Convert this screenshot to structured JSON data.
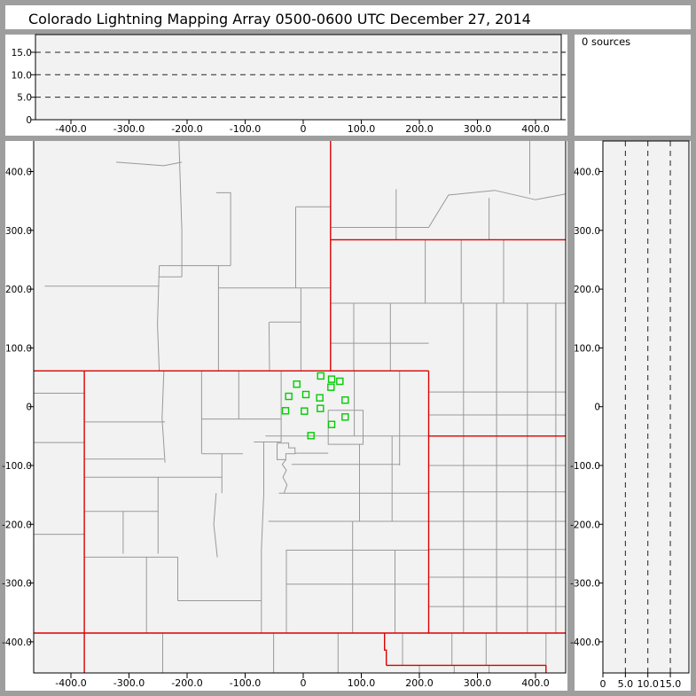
{
  "title": "Colorado Lightning Mapping Array   0500-0600 UTC  December 27, 2014",
  "sources_label": "0 sources",
  "colors": {
    "frame": "#9e9e9e",
    "panel_white": "#ffffff",
    "plot_bg": "#f2f2f2",
    "county_line": "#999999",
    "state_line": "#dd0000",
    "station": "#00cc00",
    "axis": "#000000",
    "dash": "#222222"
  },
  "axes": {
    "ew_km": {
      "values": [
        -400,
        -300,
        -200,
        -100,
        0,
        100,
        200,
        300,
        400
      ],
      "labels": [
        "-400.0",
        "-300.0",
        "-200.0",
        "-100.0",
        "0",
        "100.0",
        "200.0",
        "300.0",
        "400.0"
      ]
    },
    "ns_km": {
      "values": [
        400,
        300,
        200,
        100,
        0,
        -100,
        -200,
        -300,
        -400
      ],
      "labels": [
        "400.0",
        "300.0",
        "200.0",
        "100.0",
        "0",
        "-100.0",
        "-200.0",
        "-300.0",
        "-400.0"
      ]
    },
    "alt_km": {
      "values": [
        0,
        5,
        10,
        15
      ],
      "labels": [
        "0",
        "5.0",
        "10.0",
        "15.0"
      ]
    },
    "dashed_alt_levels": [
      5,
      10,
      15
    ]
  },
  "chart_data": {
    "type": "scatter",
    "title": "Colorado Lightning Mapping Array   0500-0600 UTC  December 27, 2014",
    "source_count_text": "0 sources",
    "xlabel_units_km_east": true,
    "x_range_km": [
      -464,
      452
    ],
    "y_range_km": [
      -453,
      452
    ],
    "alt_range_km": [
      0,
      19
    ],
    "lightning_sources": [],
    "stations_km": [
      [
        30.1,
        52.3
      ],
      [
        48.9,
        46.8
      ],
      [
        63.1,
        43.3
      ],
      [
        -11.1,
        38.3
      ],
      [
        47.8,
        33.2
      ],
      [
        4.6,
        20.7
      ],
      [
        -24.9,
        17.6
      ],
      [
        28.5,
        15.1
      ],
      [
        72.2,
        11.2
      ],
      [
        -30.5,
        -6.9
      ],
      [
        2.0,
        -7.5
      ],
      [
        29.5,
        -3.0
      ],
      [
        72.2,
        -17.5
      ],
      [
        48.9,
        -30.2
      ],
      [
        13.3,
        -49.2
      ]
    ]
  },
  "map": {
    "state_borders": [
      [
        [
          -464,
          61
        ],
        [
          216,
          61
        ]
      ],
      [
        [
          216,
          61
        ],
        [
          216,
          -385
        ]
      ],
      [
        [
          216,
          -50
        ],
        [
          452,
          -50
        ]
      ],
      [
        [
          47,
          452
        ],
        [
          47,
          61
        ]
      ],
      [
        [
          47,
          284
        ],
        [
          452,
          284
        ]
      ],
      [
        [
          -464,
          -385
        ],
        [
          452,
          -385
        ]
      ],
      [
        [
          -377,
          61
        ],
        [
          -377,
          -453
        ]
      ],
      [
        [
          140,
          -385
        ],
        [
          140,
          -414
        ],
        [
          143,
          -414
        ],
        [
          143,
          -440
        ]
      ],
      [
        [
          143,
          -440
        ],
        [
          418,
          -440
        ]
      ],
      [
        [
          418,
          -440
        ],
        [
          418,
          -453
        ]
      ]
    ],
    "county_lines": [
      [
        [
          -58,
          61
        ],
        [
          -59,
          144
        ]
      ],
      [
        [
          -58,
          144
        ],
        [
          -4,
          144
        ]
      ],
      [
        [
          -4,
          61
        ],
        [
          -4,
          202
        ]
      ],
      [
        [
          -146,
          61
        ],
        [
          -146,
          240
        ]
      ],
      [
        [
          -248,
          61
        ],
        [
          -251,
          140
        ],
        [
          -248,
          240
        ]
      ],
      [
        [
          -248,
          240
        ],
        [
          -125,
          240
        ]
      ],
      [
        [
          -146,
          202
        ],
        [
          47,
          202
        ]
      ],
      [
        [
          -445,
          205
        ],
        [
          -248,
          205
        ]
      ],
      [
        [
          -13,
          202
        ],
        [
          -13,
          340
        ]
      ],
      [
        [
          -13,
          340
        ],
        [
          47,
          340
        ]
      ],
      [
        [
          -125,
          240
        ],
        [
          -125,
          364
        ],
        [
          -150,
          364
        ]
      ],
      [
        [
          -248,
          221
        ],
        [
          -209,
          221
        ]
      ],
      [
        [
          -209,
          221
        ],
        [
          -209,
          300
        ],
        [
          -214,
          452
        ]
      ],
      [
        [
          -322,
          416
        ],
        [
          -240,
          410
        ],
        [
          -209,
          416
        ]
      ],
      [
        [
          -464,
          23
        ],
        [
          -377,
          23
        ]
      ],
      [
        [
          -464,
          -61
        ],
        [
          -377,
          -61
        ]
      ],
      [
        [
          -464,
          -217
        ],
        [
          -377,
          -217
        ]
      ],
      [
        [
          47,
          305
        ],
        [
          216,
          305
        ]
      ],
      [
        [
          160,
          284
        ],
        [
          160,
          370
        ]
      ],
      [
        [
          216,
          305
        ],
        [
          250,
          360
        ],
        [
          330,
          368
        ],
        [
          400,
          352
        ],
        [
          452,
          362
        ]
      ],
      [
        [
          320,
          284
        ],
        [
          320,
          355
        ]
      ],
      [
        [
          390,
          362
        ],
        [
          390,
          452
        ]
      ],
      [
        [
          47,
          176
        ],
        [
          452,
          176
        ]
      ],
      [
        [
          47,
          108
        ],
        [
          216,
          108
        ]
      ],
      [
        [
          87,
          61
        ],
        [
          87,
          176
        ]
      ],
      [
        [
          150,
          61
        ],
        [
          150,
          176
        ]
      ],
      [
        [
          210,
          176
        ],
        [
          210,
          284
        ]
      ],
      [
        [
          272,
          176
        ],
        [
          272,
          284
        ]
      ],
      [
        [
          345,
          176
        ],
        [
          345,
          284
        ]
      ],
      [
        [
          216,
          25
        ],
        [
          452,
          25
        ]
      ],
      [
        [
          216,
          -14
        ],
        [
          452,
          -14
        ]
      ],
      [
        [
          276,
          -50
        ],
        [
          276,
          176
        ]
      ],
      [
        [
          333,
          -50
        ],
        [
          333,
          176
        ]
      ],
      [
        [
          386,
          -50
        ],
        [
          386,
          176
        ]
      ],
      [
        [
          435,
          -50
        ],
        [
          435,
          176
        ]
      ],
      [
        [
          276,
          -50
        ],
        [
          276,
          -385
        ]
      ],
      [
        [
          333,
          -50
        ],
        [
          333,
          -385
        ]
      ],
      [
        [
          386,
          -50
        ],
        [
          386,
          -385
        ]
      ],
      [
        [
          435,
          -50
        ],
        [
          435,
          -385
        ]
      ],
      [
        [
          216,
          -100
        ],
        [
          452,
          -100
        ]
      ],
      [
        [
          216,
          -145
        ],
        [
          452,
          -145
        ]
      ],
      [
        [
          216,
          -195
        ],
        [
          452,
          -195
        ]
      ],
      [
        [
          216,
          -243
        ],
        [
          452,
          -243
        ]
      ],
      [
        [
          216,
          -290
        ],
        [
          452,
          -290
        ]
      ],
      [
        [
          216,
          -340
        ],
        [
          452,
          -340
        ]
      ],
      [
        [
          171,
          -385
        ],
        [
          171,
          -440
        ]
      ],
      [
        [
          256,
          -385
        ],
        [
          256,
          -440
        ]
      ],
      [
        [
          315,
          -385
        ],
        [
          315,
          -440
        ]
      ],
      [
        [
          418,
          -385
        ],
        [
          418,
          -440
        ]
      ],
      [
        [
          200,
          -440
        ],
        [
          200,
          -462
        ]
      ],
      [
        [
          260,
          -440
        ],
        [
          260,
          -462
        ]
      ],
      [
        [
          320,
          -440
        ],
        [
          320,
          -462
        ]
      ],
      [
        [
          88,
          61
        ],
        [
          88,
          -50
        ]
      ],
      [
        [
          166,
          61
        ],
        [
          166,
          -100
        ]
      ],
      [
        [
          43,
          -6
        ],
        [
          103,
          -6
        ],
        [
          103,
          -64
        ],
        [
          43,
          -64
        ],
        [
          43,
          -6
        ]
      ],
      [
        [
          -65,
          -50
        ],
        [
          216,
          -50
        ]
      ],
      [
        [
          97,
          -64
        ],
        [
          97,
          -195
        ]
      ],
      [
        [
          85,
          -195
        ],
        [
          85,
          -385
        ]
      ],
      [
        [
          153,
          -50
        ],
        [
          153,
          -195
        ]
      ],
      [
        [
          -20,
          -98
        ],
        [
          166,
          -98
        ]
      ],
      [
        [
          -42,
          -147
        ],
        [
          216,
          -147
        ]
      ],
      [
        [
          -60,
          -195
        ],
        [
          216,
          -195
        ]
      ],
      [
        [
          -30,
          -244
        ],
        [
          216,
          -244
        ]
      ],
      [
        [
          -29,
          -302
        ],
        [
          216,
          -302
        ]
      ],
      [
        [
          158,
          -244
        ],
        [
          158,
          -385
        ]
      ],
      [
        [
          -29,
          -244
        ],
        [
          -29,
          -385
        ]
      ],
      [
        [
          -38,
          61
        ],
        [
          -38,
          -60
        ]
      ],
      [
        [
          -111,
          61
        ],
        [
          -111,
          -21
        ]
      ],
      [
        [
          -111,
          -21
        ],
        [
          -38,
          -21
        ]
      ],
      [
        [
          -85,
          -60
        ],
        [
          -38,
          -60
        ]
      ],
      [
        [
          -45,
          -62
        ],
        [
          -25,
          -62
        ],
        [
          -25,
          -70
        ],
        [
          -14,
          -70
        ],
        [
          -14,
          -80
        ],
        [
          -30,
          -80
        ],
        [
          -30,
          -90
        ],
        [
          -45,
          -90
        ],
        [
          -45,
          -62
        ]
      ],
      [
        [
          -68,
          -60
        ],
        [
          -68,
          -147
        ]
      ],
      [
        [
          -14,
          -79
        ],
        [
          43,
          -79
        ]
      ],
      [
        [
          -30,
          -90
        ],
        [
          -36,
          -98
        ],
        [
          -29,
          -108
        ],
        [
          -35,
          -120
        ],
        [
          -28,
          -133
        ],
        [
          -33,
          -147
        ]
      ],
      [
        [
          -175,
          -21
        ],
        [
          -111,
          -21
        ]
      ],
      [
        [
          -175,
          61
        ],
        [
          -175,
          -80
        ]
      ],
      [
        [
          -175,
          -80
        ],
        [
          -104,
          -80
        ]
      ],
      [
        [
          -140,
          -80
        ],
        [
          -140,
          -147
        ]
      ],
      [
        [
          -240,
          61
        ],
        [
          -243,
          -20
        ],
        [
          -238,
          -95
        ]
      ],
      [
        [
          -377,
          -26
        ],
        [
          -238,
          -26
        ]
      ],
      [
        [
          -377,
          -89
        ],
        [
          -240,
          -89
        ]
      ],
      [
        [
          -377,
          -120
        ],
        [
          -140,
          -120
        ]
      ],
      [
        [
          -250,
          -120
        ],
        [
          -250,
          -250
        ]
      ],
      [
        [
          -377,
          -178
        ],
        [
          -250,
          -178
        ]
      ],
      [
        [
          -310,
          -178
        ],
        [
          -310,
          -250
        ]
      ],
      [
        [
          -377,
          -256
        ],
        [
          -216,
          -256
        ]
      ],
      [
        [
          -270,
          -256
        ],
        [
          -270,
          -385
        ]
      ],
      [
        [
          -150,
          -147
        ],
        [
          -154,
          -200
        ],
        [
          -148,
          -256
        ]
      ],
      [
        [
          -216,
          -256
        ],
        [
          -216,
          -330
        ]
      ],
      [
        [
          -216,
          -330
        ],
        [
          -72,
          -330
        ]
      ],
      [
        [
          -68,
          -147
        ],
        [
          -72,
          -244
        ],
        [
          -72,
          -385
        ]
      ],
      [
        [
          -51,
          -385
        ],
        [
          -51,
          -462
        ]
      ],
      [
        [
          60,
          -385
        ],
        [
          60,
          -462
        ]
      ],
      [
        [
          -242,
          -385
        ],
        [
          -242,
          -462
        ]
      ]
    ]
  }
}
